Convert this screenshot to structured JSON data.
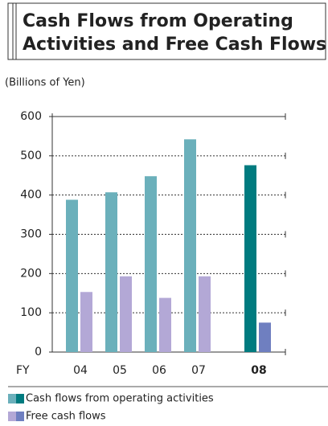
{
  "chart_data": {
    "type": "bar",
    "title": [
      "Cash Flows from Operating",
      "Activities and Free Cash Flows"
    ],
    "unit_label": "(Billions of Yen)",
    "x_label": "FY",
    "categories": [
      "04",
      "05",
      "06",
      "07",
      "08"
    ],
    "series": [
      {
        "name": "Cash flows from operating activities",
        "colors": [
          "#6bb0bb",
          "#6bb0bb",
          "#6bb0bb",
          "#6bb0bb",
          "#007b7f"
        ],
        "values": [
          388,
          407,
          448,
          542,
          476
        ]
      },
      {
        "name": "Free cash flows",
        "colors": [
          "#b3a8d6",
          "#b3a8d6",
          "#b3a8d6",
          "#b3a8d6",
          "#6f7fc0"
        ],
        "values": [
          153,
          193,
          138,
          193,
          75
        ]
      }
    ],
    "ylim": [
      0,
      600
    ],
    "yticks": [
      0,
      100,
      200,
      300,
      400,
      500,
      600
    ],
    "grid": true
  }
}
